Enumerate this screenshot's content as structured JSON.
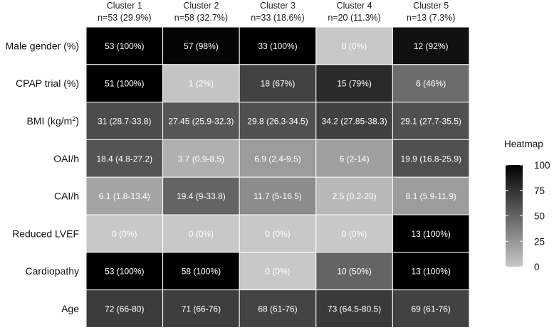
{
  "chart_data": {
    "type": "heatmap",
    "columns": [
      {
        "name": "Cluster 1",
        "n": "n=53 (29.9%)"
      },
      {
        "name": "Cluster 2",
        "n": "n=58 (32.7%)"
      },
      {
        "name": "Cluster 3",
        "n": "n=33 (18.6%)"
      },
      {
        "name": "Cluster 4",
        "n": "n=20 (11.3%)"
      },
      {
        "name": "Cluster 5",
        "n": "n=13 (7.3%)"
      }
    ],
    "rows": [
      {
        "label": "Male gender (%)",
        "cells": [
          {
            "text": "53 (100%)",
            "value": 100
          },
          {
            "text": "57 (98%)",
            "value": 98
          },
          {
            "text": "33 (100%)",
            "value": 100
          },
          {
            "text": "0 (0%)",
            "value": 0
          },
          {
            "text": "12 (92%)",
            "value": 92
          }
        ]
      },
      {
        "label": "CPAP trial (%)",
        "cells": [
          {
            "text": "51 (100%)",
            "value": 100
          },
          {
            "text": "1 (2%)",
            "value": 2
          },
          {
            "text": "18 (67%)",
            "value": 67
          },
          {
            "text": "15 (79%)",
            "value": 79
          },
          {
            "text": "6 (46%)",
            "value": 46
          }
        ]
      },
      {
        "label": "BMI (kg/m",
        "label_sup": "2",
        "label_suffix": ")",
        "cells": [
          {
            "text": "31 (28.7-33.8)",
            "value": 62
          },
          {
            "text": "27.45 (25.9-32.3)",
            "value": 57
          },
          {
            "text": "29.8 (26.3-34.5)",
            "value": 60
          },
          {
            "text": "34.2 (27.85-38.3)",
            "value": 68
          },
          {
            "text": "29.1 (27.7-35.5)",
            "value": 60
          }
        ]
      },
      {
        "label": "OAI/h",
        "cells": [
          {
            "text": "18.4 (4.8-27.2)",
            "value": 58
          },
          {
            "text": "3.7 (0.9-8.5)",
            "value": 12
          },
          {
            "text": "6.9 (2.4-9.5)",
            "value": 22
          },
          {
            "text": "6 (2-14)",
            "value": 20
          },
          {
            "text": "19.9 (16.8-25.9)",
            "value": 60
          }
        ]
      },
      {
        "label": "CAI/h",
        "cells": [
          {
            "text": "6.1 (1.8-13.4)",
            "value": 18
          },
          {
            "text": "19.4 (9-33.8)",
            "value": 50
          },
          {
            "text": "11.7 (5-16.5)",
            "value": 30
          },
          {
            "text": "2.5 (0.2-20)",
            "value": 8
          },
          {
            "text": "8.1 (5.9-11.9)",
            "value": 22
          }
        ]
      },
      {
        "label": "Reduced LVEF",
        "cells": [
          {
            "text": "0 (0%)",
            "value": 0
          },
          {
            "text": "0 (0%)",
            "value": 0
          },
          {
            "text": "0 (0%)",
            "value": 0
          },
          {
            "text": "0 (0%)",
            "value": 0
          },
          {
            "text": "13 (100%)",
            "value": 100
          }
        ]
      },
      {
        "label": "Cardiopathy",
        "cells": [
          {
            "text": "53 (100%)",
            "value": 100
          },
          {
            "text": "58 (100%)",
            "value": 100
          },
          {
            "text": "0 (0%)",
            "value": 0
          },
          {
            "text": "10 (50%)",
            "value": 50
          },
          {
            "text": "13 (100%)",
            "value": 100
          }
        ]
      },
      {
        "label": "Age",
        "cells": [
          {
            "text": "72 (66-80)",
            "value": 70
          },
          {
            "text": "71 (66-76)",
            "value": 69
          },
          {
            "text": "68 (61-76)",
            "value": 66
          },
          {
            "text": "73 (64.5-80.5)",
            "value": 71
          },
          {
            "text": "69 (61-76)",
            "value": 67
          }
        ]
      }
    ],
    "legend": {
      "title": "Heatmap",
      "ticks": [
        100,
        75,
        50,
        25,
        0
      ],
      "range": [
        0,
        100
      ],
      "color_low": "#c8c8c8",
      "color_high": "#000000"
    }
  }
}
